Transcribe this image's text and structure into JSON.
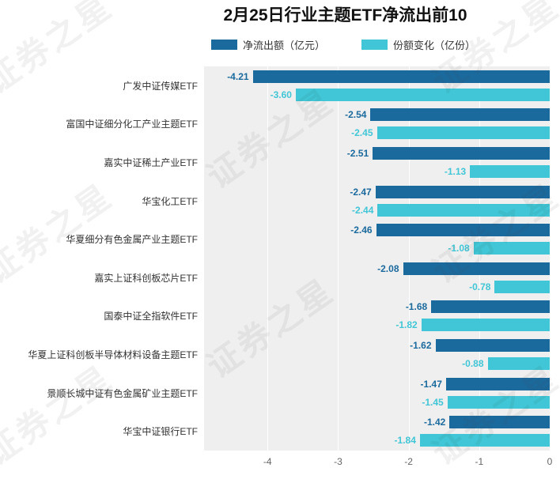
{
  "title": "2月25日行业主题ETF净流出前10",
  "watermark_text": "证券之星",
  "colors": {
    "outflow_series": "#1b6a9e",
    "share_series": "#40c6d6",
    "plot_background": "#efefef"
  },
  "legend": {
    "items": [
      "净流出额（亿元）",
      "份额变化（亿份）"
    ]
  },
  "chart_data": {
    "type": "bar",
    "orientation": "horizontal",
    "title": "2月25日行业主题ETF净流出前10",
    "categories": [
      "广发中证传媒ETF",
      "富国中证细分化工产业主题ETF",
      "嘉实中证稀土产业ETF",
      "华宝化工ETF",
      "华夏细分有色金属产业主题ETF",
      "嘉实上证科创板芯片ETF",
      "国泰中证全指软件ETF",
      "华夏上证科创板半导体材料设备主题ETF",
      "景顺长城中证有色金属矿业主题ETF",
      "华宝中证银行ETF"
    ],
    "series": [
      {
        "name": "净流出额（亿元）",
        "color": "#1b6a9e",
        "values": [
          -4.21,
          -2.54,
          -2.51,
          -2.47,
          -2.46,
          -2.08,
          -1.68,
          -1.62,
          -1.47,
          -1.42
        ]
      },
      {
        "name": "份额变化（亿份）",
        "color": "#40c6d6",
        "values": [
          -3.6,
          -2.45,
          -1.13,
          -2.44,
          -1.08,
          -0.78,
          -1.82,
          -0.88,
          -1.45,
          -1.84
        ]
      }
    ],
    "xlim": [
      -4.9,
      0
    ],
    "xticks": [
      -4,
      -3,
      -2,
      -1,
      0
    ],
    "grid": true,
    "legend_position": "top",
    "value_label_format": "2-decimals"
  }
}
